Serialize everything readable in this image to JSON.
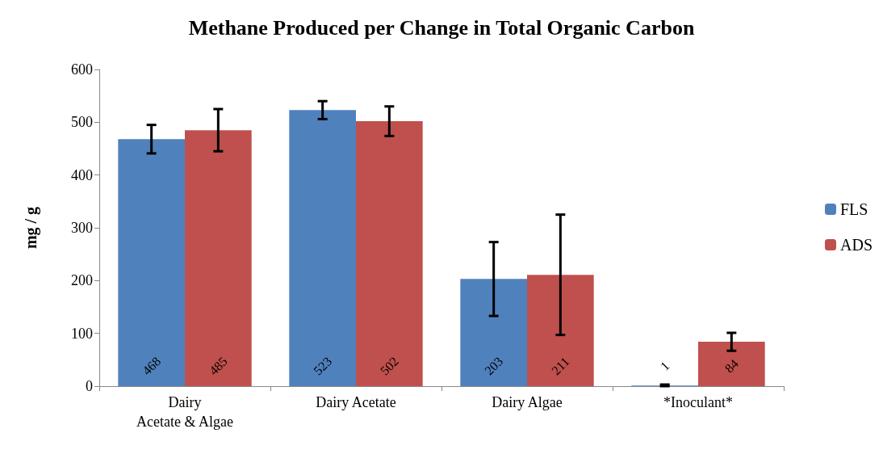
{
  "chart_data": {
    "type": "bar",
    "title": "Methane Produced per Change in Total Organic Carbon",
    "ylabel": "mg / g",
    "categories": [
      "Dairy\nAcetate & Algae",
      "Dairy Acetate",
      "Dairy Algae",
      "*Inoculant*"
    ],
    "series": [
      {
        "name": "FLS",
        "color": "#4f81bd",
        "values": [
          468,
          523,
          203,
          1
        ],
        "errors": [
          27,
          17,
          70,
          [
            0,
            3
          ]
        ]
      },
      {
        "name": "ADS",
        "color": "#c0504d",
        "values": [
          485,
          502,
          211,
          84
        ],
        "errors": [
          40,
          28,
          114,
          17
        ]
      }
    ],
    "ylim": [
      0,
      600
    ],
    "yticks": [
      0,
      100,
      200,
      300,
      400,
      500,
      600
    ],
    "grid": false,
    "legend": "right",
    "data_labels": true
  }
}
